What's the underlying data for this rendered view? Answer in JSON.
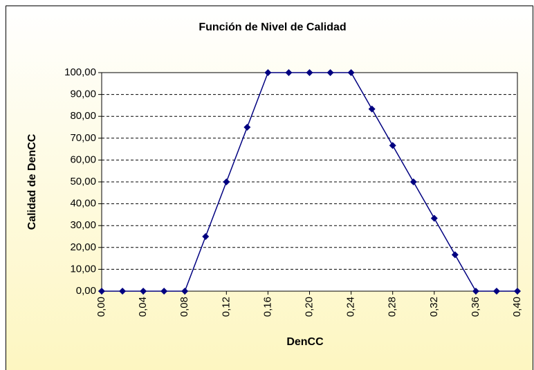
{
  "chart_data": {
    "type": "line",
    "title": "Función de Nivel de Calidad",
    "x_label": "DenCC",
    "y_label": "Calidad de DenCC",
    "x": [
      0,
      0.02,
      0.04,
      0.06,
      0.08,
      0.1,
      0.12,
      0.14,
      0.16,
      0.18,
      0.2,
      0.22,
      0.24,
      0.26,
      0.28,
      0.3,
      0.32,
      0.34,
      0.36,
      0.38,
      0.4
    ],
    "series": [
      {
        "name": "Calidad de DenCC",
        "color": "#000080",
        "values": [
          0,
          0,
          0,
          0,
          0,
          25,
          50,
          75,
          100,
          100,
          100,
          100,
          100,
          83.33,
          66.67,
          50,
          33.33,
          16.67,
          0,
          0,
          0
        ]
      }
    ],
    "xlim": [
      0,
      0.4
    ],
    "xticks": [
      {
        "value": 0,
        "label": "0,00"
      },
      {
        "value": 0.04,
        "label": "0,04"
      },
      {
        "value": 0.08,
        "label": "0,08"
      },
      {
        "value": 0.12,
        "label": "0,12"
      },
      {
        "value": 0.16,
        "label": "0,16"
      },
      {
        "value": 0.2,
        "label": "0,20"
      },
      {
        "value": 0.24,
        "label": "0,24"
      },
      {
        "value": 0.28,
        "label": "0,28"
      },
      {
        "value": 0.32,
        "label": "0,32"
      },
      {
        "value": 0.36,
        "label": "0,36"
      },
      {
        "value": 0.4,
        "label": "0,40"
      }
    ],
    "ylim": [
      0,
      100
    ],
    "yticks": [
      {
        "value": 0,
        "label": "0,00"
      },
      {
        "value": 10,
        "label": "10,00"
      },
      {
        "value": 20,
        "label": "20,00"
      },
      {
        "value": 30,
        "label": "30,00"
      },
      {
        "value": 40,
        "label": "40,00"
      },
      {
        "value": 50,
        "label": "50,00"
      },
      {
        "value": 60,
        "label": "60,00"
      },
      {
        "value": 70,
        "label": "70,00"
      },
      {
        "value": 80,
        "label": "80,00"
      },
      {
        "value": 90,
        "label": "90,00"
      },
      {
        "value": 100,
        "label": "100,00"
      }
    ],
    "grid": true
  }
}
